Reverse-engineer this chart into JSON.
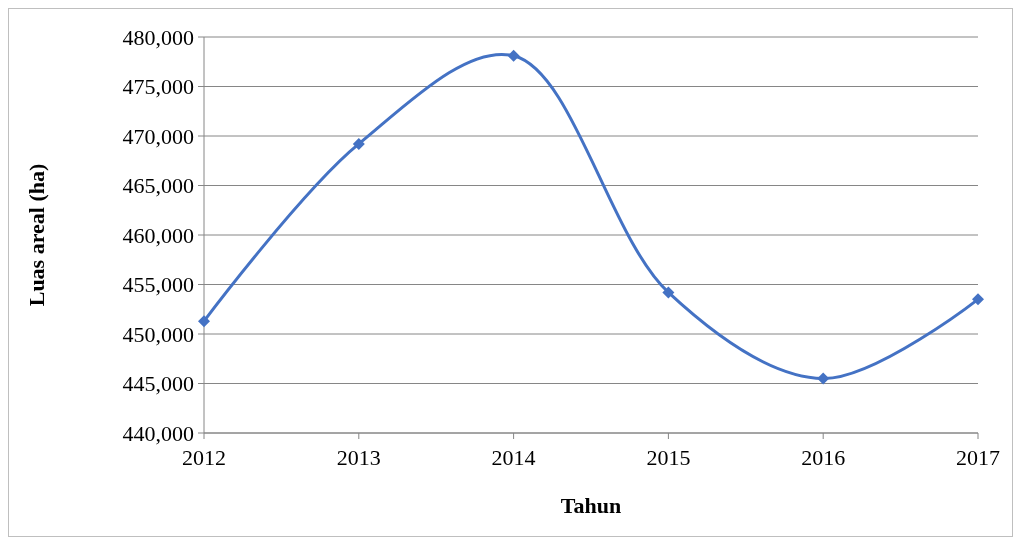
{
  "chart_data": {
    "type": "line",
    "xlabel": "Tahun",
    "ylabel": "Luas areal (ha)",
    "x": [
      2012,
      2013,
      2014,
      2015,
      2016,
      2017
    ],
    "series": [
      {
        "color": "#4472c4",
        "values": [
          451300,
          469200,
          478100,
          454200,
          445500,
          453500
        ]
      }
    ],
    "xlim": [
      2012,
      2017
    ],
    "xticks": [
      2012,
      2013,
      2014,
      2015,
      2016,
      2017
    ],
    "ylim": [
      440000,
      480000
    ],
    "yticks": [
      {
        "value": 440000,
        "label": "440,000"
      },
      {
        "value": 445000,
        "label": "445,000"
      },
      {
        "value": 450000,
        "label": "450,000"
      },
      {
        "value": 455000,
        "label": "455,000"
      },
      {
        "value": 460000,
        "label": "460,000"
      },
      {
        "value": 465000,
        "label": "465,000"
      },
      {
        "value": 470000,
        "label": "470,000"
      },
      {
        "value": 475000,
        "label": "475,000"
      },
      {
        "value": 480000,
        "label": "480,000"
      }
    ],
    "grid": "y",
    "marker": "diamond",
    "line_style": "solid"
  }
}
